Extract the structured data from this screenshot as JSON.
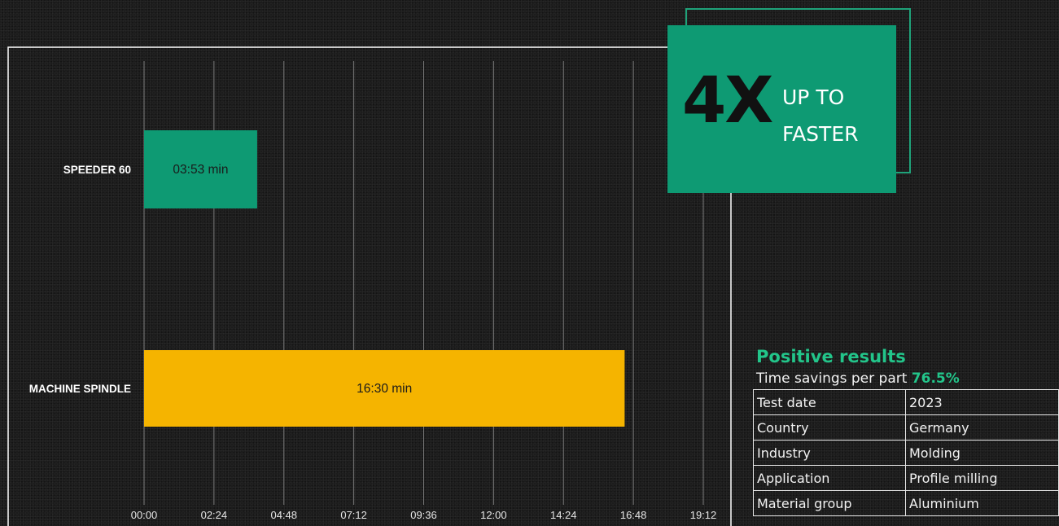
{
  "badge": {
    "big": "4X",
    "line1": "UP TO",
    "line2": "FASTER"
  },
  "results": {
    "title": "Positive results",
    "subtitle_label": "Time savings per part",
    "subtitle_value": "76.5%",
    "rows": [
      {
        "key": "Test date",
        "value": "2023"
      },
      {
        "key": "Country",
        "value": "Germany"
      },
      {
        "key": "Industry",
        "value": "Molding"
      },
      {
        "key": "Application",
        "value": "Profile milling"
      },
      {
        "key": "Material group",
        "value": "Aluminium"
      }
    ]
  },
  "chart_data": {
    "type": "bar",
    "orientation": "horizontal",
    "title": "",
    "xlabel": "",
    "ylabel": "",
    "grid": true,
    "xlim_minutes": [
      0,
      19.2
    ],
    "x_ticks": [
      "00:00",
      "02:24",
      "04:48",
      "07:12",
      "09:36",
      "12:00",
      "14:24",
      "16:48",
      "19:12"
    ],
    "categories": [
      "SPEEDER 60",
      "MACHINE SPINDLE"
    ],
    "values_minutes": [
      3.8833,
      16.5
    ],
    "data_labels": [
      "03:53 min",
      "16:30 min"
    ],
    "colors": [
      "#0e9a73",
      "#f5b400"
    ]
  }
}
